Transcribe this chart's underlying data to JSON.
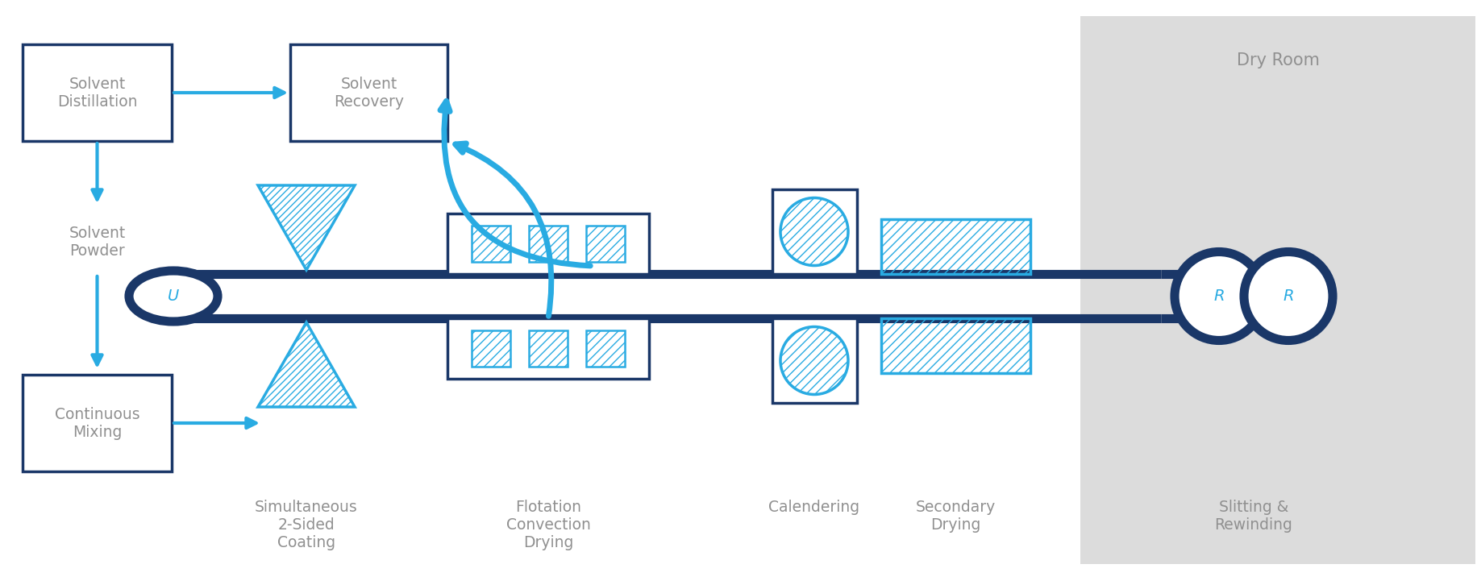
{
  "bg_color": "#ffffff",
  "dry_room_bg": "#dcdcdc",
  "dark_blue": "#1a3768",
  "light_blue": "#29abe2",
  "gray_text": "#909090",
  "labels": {
    "solvent_distillation": "Solvent\nDistillation",
    "solvent_recovery": "Solvent\nRecovery",
    "solvent_powder": "Solvent\nPowder",
    "continuous_mixing": "Continuous\nMixing",
    "simultaneous": "Simultaneous\n2-Sided\nCoating",
    "flotation": "Flotation\nConvection\nDrying",
    "calendering": "Calendering",
    "secondary_drying": "Secondary\nDrying",
    "slitting": "Slitting &\nRewinding",
    "dry_room": "Dry Room"
  }
}
